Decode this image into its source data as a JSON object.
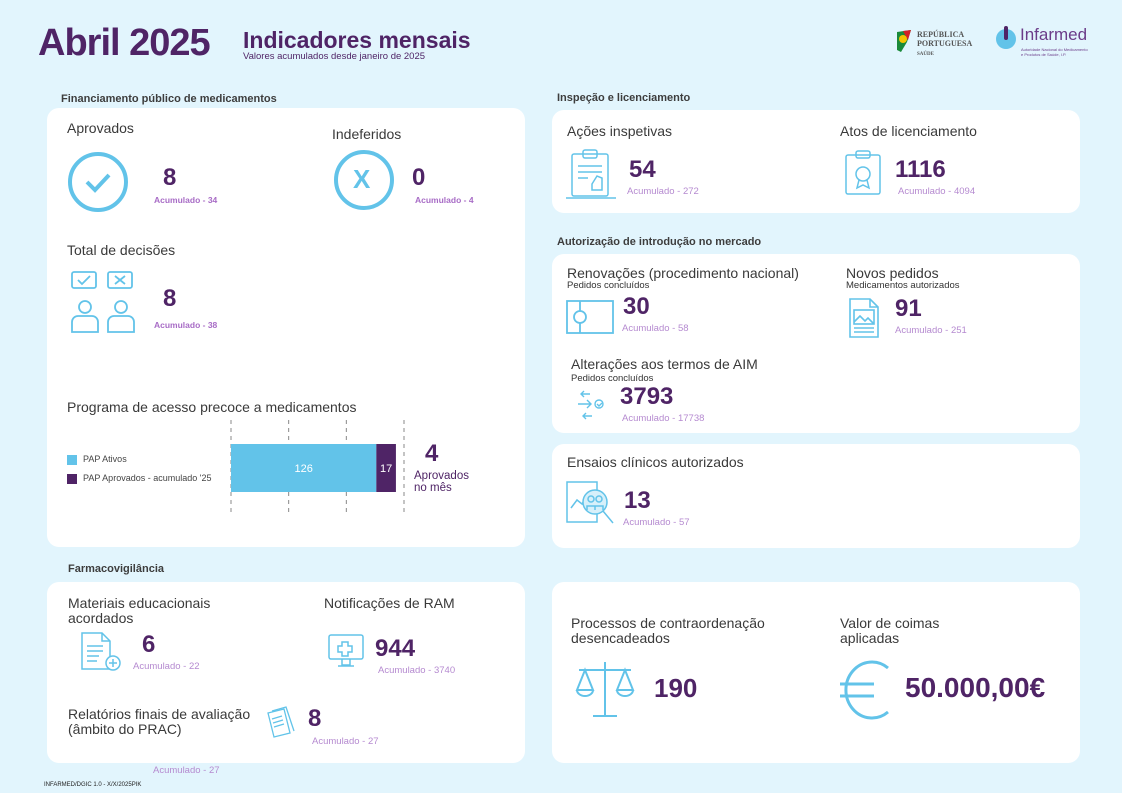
{
  "header": {
    "month": "Abril 2025",
    "title": "Indicadores mensais",
    "subtitle": "Valores acumulados desde janeiro de 2025",
    "logo1": "REPÚBLICA PORTUGUESA SAÚDE",
    "logo2": "Infarmed",
    "logo2_sub": "Autoridade Nacional do Medicamento e Produtos de Saúde, I.P."
  },
  "financiamento": {
    "section": "Financiamento público de medicamentos",
    "aprovados": {
      "label": "Aprovados",
      "value": "8",
      "acc": "Acumulado - 34"
    },
    "indeferidos": {
      "label": "Indeferidos",
      "value": "0",
      "acc": "Acumulado - 4",
      "icon_text": "X"
    },
    "total": {
      "label": "Total de decisões",
      "value": "8",
      "acc": "Acumulado - 38"
    },
    "pap": {
      "label": "Programa de acesso precoce a medicamentos",
      "value": "4",
      "value_label": "Aprovados no mês"
    }
  },
  "chart_data": {
    "type": "bar",
    "orientation": "horizontal",
    "stacked": true,
    "categories": [
      "PAP"
    ],
    "series": [
      {
        "name": "PAP Ativos",
        "values": [
          126
        ],
        "color": "#62c3e9"
      },
      {
        "name": "PAP Aprovados - acumulado '25",
        "values": [
          17
        ],
        "color": "#4f2466"
      }
    ],
    "xlim": [
      0,
      150
    ],
    "grid": true,
    "legend": "left"
  },
  "inspecao": {
    "section": "Inspeção e licenciamento",
    "acoes": {
      "label": "Ações inspetivas",
      "value": "54",
      "acc": "Acumulado - 272"
    },
    "atos": {
      "label": "Atos de licenciamento",
      "value": "1116",
      "acc": "Acumulado - 4094"
    }
  },
  "aim": {
    "section": "Autorização de introdução no mercado",
    "renov": {
      "label": "Renovações (procedimento nacional)",
      "sub": "Pedidos concluídos",
      "value": "30",
      "acc": "Acumulado - 58"
    },
    "novos": {
      "label": "Novos pedidos",
      "sub": "Medicamentos autorizados",
      "value": "91",
      "acc": "Acumulado - 251"
    },
    "alter": {
      "label": "Alterações aos termos de AIM",
      "sub": "Pedidos concluídos",
      "value": "3793",
      "acc": "Acumulado - 17738"
    }
  },
  "ensaios": {
    "label": "Ensaios clínicos autorizados",
    "value": "13",
    "acc": "Acumulado - 57"
  },
  "farmaco": {
    "section": "Farmacovigilância",
    "materiais": {
      "label": "Materiais educacionais acordados",
      "value": "6",
      "acc": "Acumulado - 22"
    },
    "ram": {
      "label": "Notificações de RAM",
      "value": "944",
      "acc": "Acumulado - 3740"
    },
    "relatorios": {
      "label": "Relatórios finais de avaliação (âmbito do PRAC)",
      "value": "8",
      "acc": "Acumulado - 27"
    },
    "stray_acc": "Acumulado - 27"
  },
  "contra": {
    "label": "Processos de contraordenação desencadeados",
    "value": "190"
  },
  "coimas": {
    "label": "Valor de coimas aplicadas",
    "value": "50.000,00€"
  },
  "footer": "INFARMED/DGIC 1.0 - X/X/2025PIK",
  "colors": {
    "purple": "#4f2466",
    "blue": "#62c3e9",
    "bg": "#e2f5fd"
  }
}
